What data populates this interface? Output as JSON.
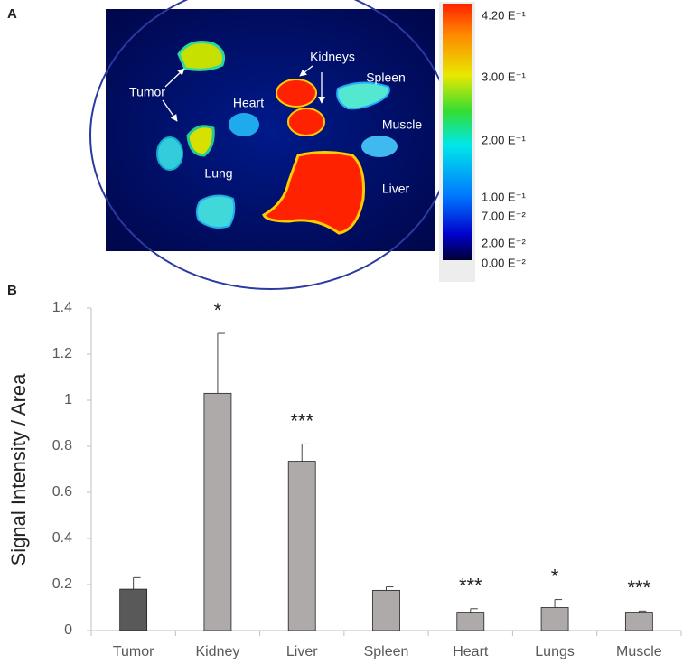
{
  "panel_a": {
    "label": "A",
    "organ_labels": [
      "Tumor",
      "Kidneys",
      "Heart",
      "Spleen",
      "Muscle",
      "Lung",
      "Liver"
    ],
    "colorbar_labels": [
      "4.20 E⁻¹",
      "3.00 E⁻¹",
      "2.00 E⁻¹",
      "1.00 E⁻¹",
      "7.00 E⁻²",
      "2.00 E⁻²",
      "0.00 E⁻²"
    ]
  },
  "chart_data": {
    "type": "bar",
    "panel_label": "B",
    "y_label": "Signal Intensity / Area",
    "categories": [
      "Tumor",
      "Kidney",
      "Liver",
      "Spleen",
      "Heart",
      "Lungs",
      "Muscle"
    ],
    "values": [
      0.18,
      1.03,
      0.735,
      0.175,
      0.08,
      0.1,
      0.08
    ],
    "errors": [
      0.05,
      0.26,
      0.075,
      0.015,
      0.015,
      0.035,
      0.005
    ],
    "colors": [
      "#595959",
      "#aeaaaa",
      "#aeaaaa",
      "#aeaaaa",
      "#aeaaaa",
      "#aeaaaa",
      "#aeaaaa"
    ],
    "annotations": [
      null,
      "*",
      "***",
      null,
      "***",
      "*",
      "***"
    ],
    "ylim": [
      0,
      1.4
    ],
    "yticks": [
      0,
      0.2,
      0.4,
      0.6,
      0.8,
      1,
      1.2,
      1.4
    ]
  }
}
